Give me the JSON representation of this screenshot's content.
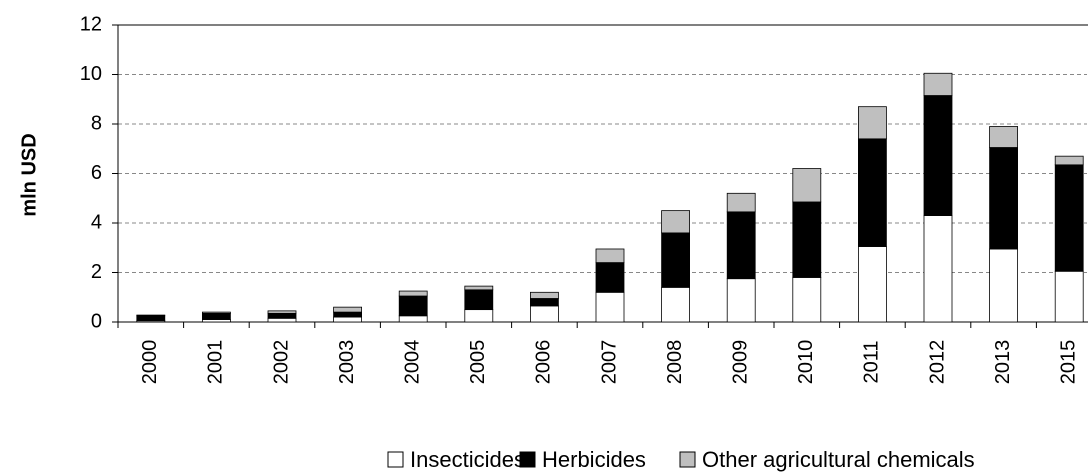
{
  "chart_data": {
    "type": "stacked_bar",
    "y_label": "mln USD",
    "categories": [
      "2000",
      "2001",
      "2002",
      "2003",
      "2004",
      "2005",
      "2006",
      "2007",
      "2008",
      "2009",
      "2010",
      "2011",
      "2012",
      "2013",
      "2015"
    ],
    "series": [
      {
        "name": "Insecticides",
        "color": "#ffffff",
        "values": [
          0.05,
          0.1,
          0.15,
          0.2,
          0.25,
          0.5,
          0.65,
          1.2,
          1.4,
          1.75,
          1.8,
          3.05,
          4.3,
          2.95,
          2.05
        ]
      },
      {
        "name": "Herbicides",
        "color": "#000000",
        "values": [
          0.2,
          0.25,
          0.2,
          0.2,
          0.8,
          0.8,
          0.3,
          1.2,
          2.2,
          2.7,
          3.05,
          4.35,
          4.85,
          4.1,
          4.3
        ]
      },
      {
        "name": "Other agricultural chemicals",
        "color": "#bfbfbf",
        "values": [
          0.03,
          0.05,
          0.1,
          0.2,
          0.2,
          0.15,
          0.25,
          0.55,
          0.9,
          0.75,
          1.35,
          1.3,
          0.9,
          0.85,
          0.35
        ]
      }
    ],
    "ylim": [
      0,
      12
    ],
    "yticks": [
      0,
      2,
      4,
      6,
      8,
      10,
      12
    ],
    "grid": true,
    "legend": "bottom"
  }
}
